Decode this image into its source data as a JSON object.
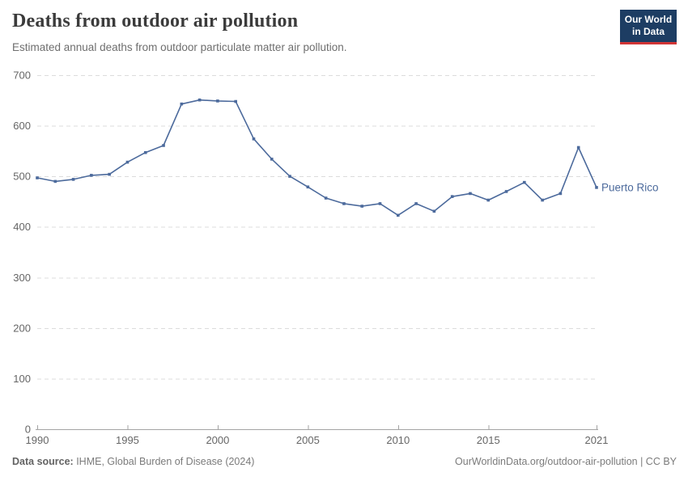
{
  "header": {
    "title": "Deaths from outdoor air pollution",
    "subtitle": "Estimated annual deaths from outdoor particulate matter air pollution."
  },
  "logo": {
    "line1": "Our World",
    "line2": "in Data",
    "bg_color": "#1d3d63",
    "accent_color": "#d13536"
  },
  "chart_data": {
    "type": "line",
    "title": "Deaths from outdoor air pollution",
    "xlabel": "",
    "ylabel": "",
    "ylim": [
      0,
      700
    ],
    "yticks": [
      0,
      100,
      200,
      300,
      400,
      500,
      600,
      700
    ],
    "xticks": [
      1990,
      1995,
      2000,
      2005,
      2010,
      2015,
      2021
    ],
    "xlim": [
      1990,
      2021
    ],
    "grid": "horizontal-dashed",
    "legend_position": "end-of-line",
    "x": [
      1990,
      1991,
      1992,
      1993,
      1994,
      1995,
      1996,
      1997,
      1998,
      1999,
      2000,
      2001,
      2002,
      2003,
      2004,
      2005,
      2006,
      2007,
      2008,
      2009,
      2010,
      2011,
      2012,
      2013,
      2014,
      2015,
      2016,
      2017,
      2018,
      2019,
      2020,
      2021
    ],
    "series": [
      {
        "name": "Puerto Rico",
        "color": "#4c6a9c",
        "values": [
          497,
          490,
          494,
          502,
          504,
          528,
          547,
          561,
          643,
          651,
          649,
          648,
          574,
          534,
          500,
          479,
          457,
          446,
          441,
          446,
          423,
          446,
          431,
          460,
          466,
          453,
          470,
          488,
          453,
          466,
          557,
          478
        ]
      }
    ]
  },
  "footer": {
    "source_label": "Data source:",
    "source_text": " IHME, Global Burden of Disease (2024)",
    "credit": "OurWorldinData.org/outdoor-air-pollution | CC BY"
  },
  "colors": {
    "line": "#4c6a9c",
    "grid": "#dcdcdc",
    "axis": "#a3a3a3",
    "tick_label": "#666666"
  }
}
